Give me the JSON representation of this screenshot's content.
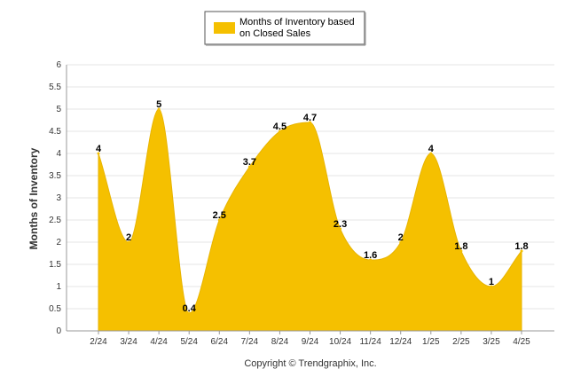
{
  "chart_data": {
    "type": "area",
    "categories": [
      "2/24",
      "3/24",
      "4/24",
      "5/24",
      "6/24",
      "7/24",
      "8/24",
      "9/24",
      "10/24",
      "11/24",
      "12/24",
      "1/25",
      "2/25",
      "3/25",
      "4/25"
    ],
    "series": [
      {
        "name": "Months of Inventory based on Closed Sales",
        "values": [
          4,
          2,
          5,
          0.4,
          2.5,
          3.7,
          4.5,
          4.7,
          2.3,
          1.6,
          2,
          4,
          1.8,
          1,
          1.8
        ]
      }
    ],
    "data_labels": [
      "4",
      "2",
      "5",
      "0.4",
      "2.5",
      "3.7",
      "4.5",
      "4.7",
      "2.3",
      "1.6",
      "2",
      "4",
      "1.8",
      "1",
      "1.8"
    ],
    "ylabel": "Months of Inventory",
    "xlabel": "",
    "ylim": [
      0,
      6
    ],
    "yticks": [
      "0",
      "0.5",
      "1",
      "1.5",
      "2",
      "2.5",
      "3",
      "3.5",
      "4",
      "4.5",
      "5",
      "5.5",
      "6"
    ],
    "grid": true,
    "legend_position": "top-center",
    "fill_color": "#F5C000",
    "footer": "Copyright © Trendgraphix, Inc."
  }
}
